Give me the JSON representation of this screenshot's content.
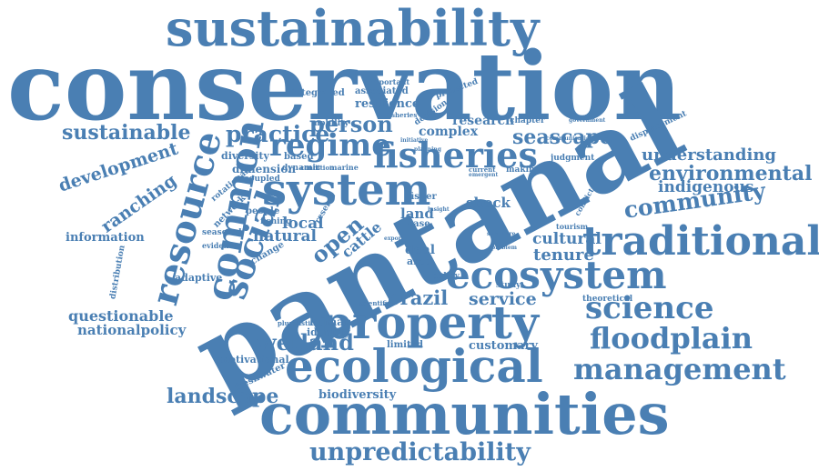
{
  "colors": {
    "word": "#4a7fb3",
    "background": "#ffffff"
  },
  "words": [
    "conservation",
    "pantanal",
    "sustainability",
    "communities",
    "ecological",
    "property",
    "fisheries",
    "system",
    "traditional",
    "ecosystem",
    "social",
    "common",
    "resource",
    "regime",
    "management",
    "floodplain",
    "science",
    "unpredictability",
    "landscape",
    "wetland",
    "community",
    "environmental",
    "understanding",
    "indigenous",
    "sustainable",
    "practice",
    "person",
    "seascape",
    "development",
    "ranching",
    "brazil",
    "service",
    "tenure",
    "cultural",
    "questionable",
    "nationalpolicy",
    "information",
    "adaptive",
    "natural",
    "local",
    "open",
    "cattle",
    "biodiversity",
    "customary",
    "human",
    "identity",
    "freshwater",
    "motivational",
    "land",
    "shock",
    "complex",
    "research",
    "resilience",
    "associated",
    "integrated",
    "mobility",
    "diversity",
    "dimension",
    "rotational",
    "network",
    "seasonal",
    "evidence",
    "distribution",
    "fishing",
    "people",
    "change",
    "based",
    "dynamic",
    "coupled",
    "fisher",
    "deal",
    "area",
    "case",
    "policy",
    "study",
    "limited",
    "theoretical",
    "displacement",
    "chapter",
    "decision",
    "protected",
    "important",
    "fisheries",
    "judgment",
    "making",
    "pluralistic",
    "scientific",
    "tourism",
    "conflict",
    "reserve",
    "marine",
    "condition",
    "current",
    "government",
    "initiative",
    "planning",
    "communication",
    "emergent",
    "insight",
    "export",
    "structure",
    "problem"
  ]
}
